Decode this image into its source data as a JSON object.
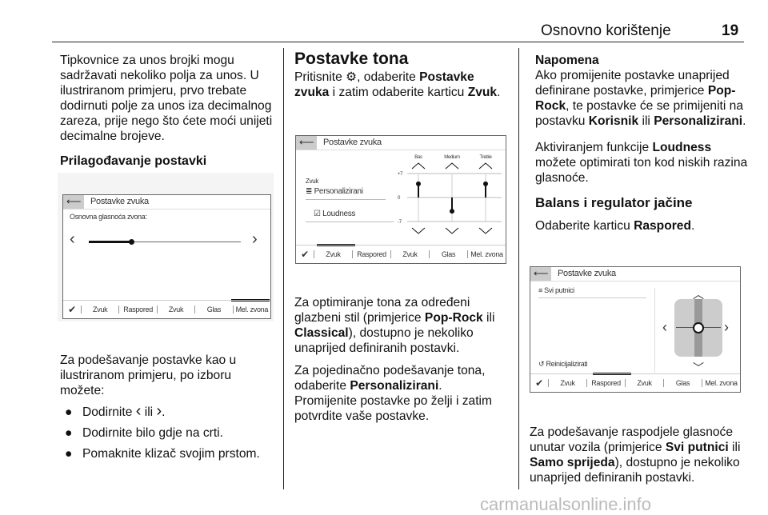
{
  "header": {
    "title": "Osnovno korištenje",
    "page": "19"
  },
  "left": {
    "intro": "Tipkovnice za unos brojki mogu sadržavati nekoliko polja za unos. U ilustriranom primjeru, prvo trebate dodirnuti polje za unos iza decimalnog zareza, prije nego što ćete moći unijeti decimalne brojeve.",
    "heading": "Prilagođavanje postavki",
    "screen": {
      "title": "Postavke zvuka",
      "label": "Osnovna glasnoća zvona:",
      "slider_value": 0.28,
      "tabs": [
        "Zvuk",
        "Raspored",
        "Zvuk",
        "Glas",
        "Mel. zvona"
      ]
    },
    "text": "Za podešavanje postavke kao u ilustriranom primjeru, po izboru možete:",
    "bullets": [
      {
        "pre": "Dodirnite ",
        "mid": " ili ",
        "post": "."
      },
      {
        "text": "Dodirnite bilo gdje na crti."
      },
      {
        "text": "Pomaknite klizač svojim prstom."
      }
    ]
  },
  "middle": {
    "heading": "Postavke tona",
    "p1": {
      "a": "Pritisnite ",
      ",b": "",
      "b": ", odaberite ",
      "c": "Postavke zvuka",
      "d": " i zatim odaberite karticu ",
      "e": "Zvuk",
      "f": "."
    },
    "screen": {
      "title": "Postavke zvuka",
      "group": "Zvuk",
      "preset": "Personalizirani",
      "loudness": "Loudness",
      "bands": [
        "Bas",
        "Medium",
        "Treble"
      ],
      "levels": [
        4,
        -4,
        4
      ],
      "ymax": "+7",
      "yzero": "0",
      "ymin": "-7",
      "tabs": [
        "Zvuk",
        "Raspored",
        "Zvuk",
        "Glas",
        "Mel. zvona"
      ]
    },
    "p2": {
      "a": "Za optimiranje tona za određeni glazbeni stil (primjerice ",
      "b": "Pop-Rock",
      "c": " ili ",
      "d": "Classical",
      "e": "), dostupno je nekoliko unaprijed definiranih postavki."
    },
    "p3": {
      "a": "Za pojedinačno podešavanje tona, odaberite ",
      "b": "Personalizirani",
      "c": "."
    },
    "p4": "Promijenite postavke po želji i zatim potvrdite vaše postavke."
  },
  "right": {
    "note_title": "Napomena",
    "note": {
      "a": "Ako promijenite postavke unaprijed definirane postavke, primjerice ",
      "b": "Pop-Rock",
      "c": ", te postavke će se primijeniti na postavku ",
      "d": "Korisnik",
      "e": " ili ",
      "f": "Personalizirani",
      "g": "."
    },
    "p1": {
      "a": "Aktiviranjem funkcije ",
      "b": "Loudness",
      "c": " možete optimirati ton kod niskih razina glasnoće."
    },
    "heading": "Balans i regulator jačine",
    "p2": {
      "a": "Odaberite karticu ",
      "b": "Raspored",
      "c": "."
    },
    "screen": {
      "title": "Postavke zvuka",
      "preset": "Svi putnici",
      "reset": "Reinicijalizirati",
      "tabs": [
        "Zvuk",
        "Raspored",
        "Zvuk",
        "Glas",
        "Mel. zvona"
      ]
    },
    "p3": {
      "a": "Za podešavanje raspodjele glasnoće unutar vozila (primjerice ",
      "b": "Svi putnici",
      "c": " ili ",
      "d": "Samo sprijeda",
      "e": "), dostupno je nekoliko unaprijed definiranih postavki."
    }
  },
  "watermark": "carmanualsonline.info"
}
